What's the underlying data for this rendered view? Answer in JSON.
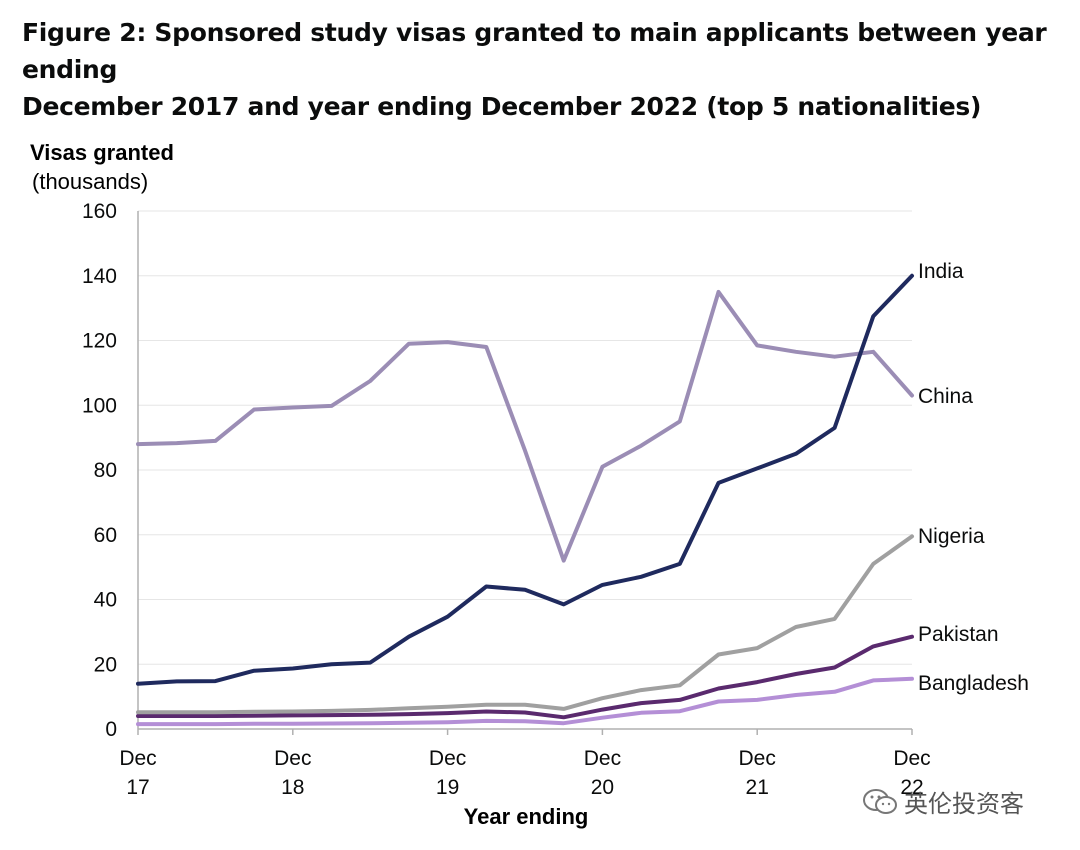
{
  "chart_data": {
    "type": "line",
    "title_line1": "Figure 2: Sponsored study visas granted to main applicants between year ending",
    "title_line2": "December 2017 and year ending December 2022 (top 5 nationalities)",
    "ylabel_line1": "Visas granted",
    "ylabel_line2": "(thousands)",
    "xlabel": "Year ending",
    "ylim": [
      0,
      160
    ],
    "y_ticks": [
      "0",
      "20",
      "40",
      "60",
      "80",
      "100",
      "120",
      "140",
      "160"
    ],
    "x_ticks": [
      {
        "line1": "Dec",
        "line2": "17",
        "index": 0
      },
      {
        "line1": "Dec",
        "line2": "18",
        "index": 4
      },
      {
        "line1": "Dec",
        "line2": "19",
        "index": 8
      },
      {
        "line1": "Dec",
        "line2": "20",
        "index": 12
      },
      {
        "line1": "Dec",
        "line2": "21",
        "index": 16
      },
      {
        "line1": "Dec",
        "line2": "22",
        "index": 20
      }
    ],
    "x": [
      "Dec 17",
      "Mar 18",
      "Jun 18",
      "Sep 18",
      "Dec 18",
      "Mar 19",
      "Jun 19",
      "Sep 19",
      "Dec 19",
      "Mar 20",
      "Jun 20",
      "Sep 20",
      "Dec 20",
      "Mar 21",
      "Jun 21",
      "Sep 21",
      "Dec 21",
      "Mar 22",
      "Jun 22",
      "Sep 22",
      "Dec 22"
    ],
    "grid": true,
    "series": [
      {
        "name": "China",
        "color": "#9b8db5",
        "values": [
          88,
          88.3,
          89,
          98.7,
          99.3,
          99.8,
          107.5,
          119,
          119.5,
          118,
          86,
          52,
          81,
          87.5,
          95,
          135,
          118.5,
          116.5,
          115,
          116.5,
          103
        ]
      },
      {
        "name": "India",
        "color": "#1f2a5e",
        "values": [
          14,
          14.7,
          14.8,
          18,
          18.7,
          20,
          20.5,
          28.5,
          34.7,
          44,
          43,
          38.5,
          44.5,
          47,
          51,
          76,
          80.5,
          85,
          93,
          127.5,
          140
        ]
      },
      {
        "name": "Nigeria",
        "color": "#a0a0a0",
        "values": [
          5.2,
          5.2,
          5.2,
          5.3,
          5.4,
          5.6,
          5.9,
          6.4,
          6.9,
          7.5,
          7.5,
          6.2,
          9.5,
          12,
          13.5,
          23,
          25,
          31.5,
          34,
          51,
          59.5
        ]
      },
      {
        "name": "Pakistan",
        "color": "#5a2a6e",
        "values": [
          4,
          4,
          4,
          4.1,
          4.2,
          4.3,
          4.4,
          4.6,
          4.9,
          5.4,
          5.1,
          3.6,
          6,
          8,
          9,
          12.5,
          14.5,
          17,
          19,
          25.5,
          28.5
        ]
      },
      {
        "name": "Bangladesh",
        "color": "#b48fd6",
        "values": [
          1.5,
          1.5,
          1.5,
          1.6,
          1.6,
          1.7,
          1.8,
          1.9,
          2.1,
          2.5,
          2.4,
          1.8,
          3.5,
          5,
          5.5,
          8.5,
          9,
          10.5,
          11.5,
          15,
          15.5
        ]
      }
    ],
    "label_order": [
      "India",
      "China",
      "Nigeria",
      "Pakistan",
      "Bangladesh"
    ]
  },
  "watermark": {
    "text": "英伦投资客",
    "icon": "wechat-icon"
  }
}
